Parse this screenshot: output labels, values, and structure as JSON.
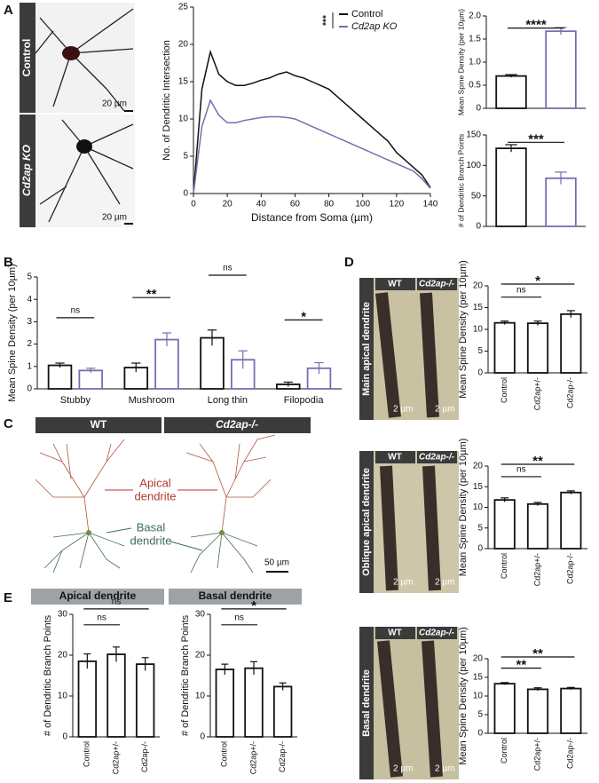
{
  "figure": {
    "panel_labels": [
      "A",
      "B",
      "C",
      "D",
      "E"
    ],
    "a_images": {
      "labels": [
        "Control",
        "Cd2ap KO"
      ],
      "scale": "20 µm"
    },
    "c_diagram": {
      "headers": [
        "WT",
        "Cd2ap-/-"
      ],
      "apical": [
        "Apical",
        "dendrite"
      ],
      "basal": [
        "Basal",
        "dendrite"
      ],
      "scale": "50 µm"
    },
    "d_images": {
      "headers": [
        "WT",
        "Cd2ap-/-"
      ],
      "rows": [
        "Main apical dendrite",
        "Oblique apical dendrite",
        "Basal dendrite"
      ],
      "scale": "2 µm"
    },
    "e_headers": [
      "Apical dendrite",
      "Basal dendrite"
    ]
  },
  "chart_data": [
    {
      "type": "line",
      "ylabel": "No. of Dendritic Intersection",
      "xlabel": "Distance from Soma (µm)",
      "x": [
        0,
        5,
        10,
        15,
        20,
        25,
        30,
        35,
        40,
        45,
        50,
        55,
        60,
        65,
        70,
        75,
        80,
        85,
        90,
        95,
        100,
        105,
        110,
        115,
        120,
        125,
        130,
        135,
        140
      ],
      "series": [
        {
          "name": "Control",
          "color": "#111111",
          "values": [
            0,
            14,
            19,
            16,
            15,
            14.5,
            14.5,
            14.8,
            15.2,
            15.5,
            16,
            16.3,
            15.8,
            15.5,
            15,
            14.5,
            14,
            13,
            12,
            11,
            10,
            9,
            8,
            7,
            5.5,
            4.5,
            3.5,
            2.5,
            0.8
          ]
        },
        {
          "name": "Cd2ap KO",
          "color": "#7b6bb0",
          "values": [
            0,
            9,
            12.5,
            10.5,
            9.5,
            9.5,
            9.8,
            10,
            10.2,
            10.3,
            10.3,
            10.2,
            10,
            9.5,
            9,
            8.5,
            8,
            7.5,
            7,
            6.5,
            6,
            5.5,
            5,
            4.5,
            4,
            3.5,
            3,
            2,
            0.7
          ]
        }
      ],
      "annotations": [
        "***"
      ],
      "xlim": [
        0,
        140
      ],
      "xticks": [
        0,
        20,
        40,
        60,
        80,
        100,
        120,
        140
      ],
      "ylim": [
        0,
        25
      ],
      "yticks": [
        0,
        5,
        10,
        15,
        20,
        25
      ]
    },
    {
      "type": "bar",
      "ylabel": "Mean Spine Density (per 10µm)",
      "categories": [
        null,
        null
      ],
      "values": [
        0.7,
        1.67
      ],
      "errors": [
        0.03,
        0.08
      ],
      "colors": [
        "#111111",
        "#7b6bb0"
      ],
      "annotations": [
        "****"
      ],
      "ylim": [
        0,
        2
      ],
      "yticks": [
        0,
        0.5,
        {
          "value": 1,
          "label": "1.0"
        },
        1.5,
        {
          "value": 2,
          "label": "2.0"
        }
      ]
    },
    {
      "type": "bar",
      "ylabel": "# of Dendritic Branch Points",
      "categories": [
        null,
        null
      ],
      "values": [
        128,
        79
      ],
      "errors": [
        6,
        10
      ],
      "colors": [
        "#111111",
        "#7b6bb0"
      ],
      "annotations": [
        "***"
      ],
      "ylim": [
        0,
        150
      ],
      "yticks": [
        0,
        50,
        100,
        150
      ]
    },
    {
      "type": "bar",
      "ylabel": "Mean Spine Density (per 10µm)",
      "categories": [
        "Stubby",
        "Mushroom",
        "Long thin",
        "Filopodia"
      ],
      "series": [
        {
          "color": "#111111",
          "values": [
            1.05,
            0.95,
            2.28,
            0.2
          ],
          "errors": [
            0.1,
            0.2,
            0.35,
            0.1
          ]
        },
        {
          "color": "#7b6bb0",
          "values": [
            0.82,
            2.2,
            1.3,
            0.92
          ],
          "errors": [
            0.1,
            0.3,
            0.4,
            0.25
          ]
        }
      ],
      "annotations": [
        "ns",
        "**",
        "ns",
        "*"
      ],
      "ylim": [
        0,
        5
      ],
      "yticks": [
        0,
        1,
        2,
        3,
        4,
        5
      ]
    },
    {
      "type": "bar",
      "ylabel": "Mean Spine Density (per 10µm)",
      "categories": [
        "Control",
        "Cd2ap+/-",
        "Cd2ap-/-"
      ],
      "values": [
        11.5,
        11.4,
        13.5
      ],
      "errors": [
        0.4,
        0.5,
        0.8
      ],
      "colors": [
        "#111111",
        "#111111",
        "#111111"
      ],
      "annotations": [
        "ns",
        "*"
      ],
      "ylim": [
        0,
        20
      ],
      "yticks": [
        0,
        5,
        10,
        15,
        20
      ]
    },
    {
      "type": "bar",
      "ylabel": "Mean Spine Density (per 10µm)",
      "categories": [
        "Control",
        "Cd2ap+/-",
        "Cd2ap-/-"
      ],
      "values": [
        11.8,
        10.8,
        13.6
      ],
      "errors": [
        0.5,
        0.4,
        0.4
      ],
      "colors": [
        "#111111",
        "#111111",
        "#111111"
      ],
      "annotations": [
        "ns",
        "**"
      ],
      "ylim": [
        0,
        20
      ],
      "yticks": [
        0,
        5,
        10,
        15,
        20
      ]
    },
    {
      "type": "bar",
      "ylabel": "Mean Spine Density (per 10µm)",
      "categories": [
        "Control",
        "Cd2ap+/-",
        "Cd2ap-/-"
      ],
      "values": [
        13.3,
        11.8,
        12.0
      ],
      "errors": [
        0.3,
        0.4,
        0.3
      ],
      "colors": [
        "#111111",
        "#111111",
        "#111111"
      ],
      "annotations": [
        "**",
        "**"
      ],
      "ylim": [
        0,
        20
      ],
      "yticks": [
        0,
        5,
        10,
        15,
        20
      ]
    },
    {
      "type": "bar",
      "ylabel": "# of Dendritic Branch Points",
      "categories": [
        "Control",
        "Cd2ap+/-",
        "Cd2ap-/-"
      ],
      "values": [
        18.5,
        20.2,
        17.8
      ],
      "errors": [
        1.8,
        1.8,
        1.6
      ],
      "colors": [
        "#111111",
        "#111111",
        "#111111"
      ],
      "annotations": [
        "ns",
        "ns"
      ],
      "ylim": [
        0,
        30
      ],
      "yticks": [
        0,
        10,
        20,
        30
      ]
    },
    {
      "type": "bar",
      "ylabel": "# of Dendritic Branch Points",
      "categories": [
        "Control",
        "Cd2ap+/-",
        "Cd2ap-/-"
      ],
      "values": [
        16.5,
        16.8,
        12.3
      ],
      "errors": [
        1.3,
        1.6,
        0.9
      ],
      "colors": [
        "#111111",
        "#111111",
        "#111111"
      ],
      "annotations": [
        "ns",
        "*"
      ],
      "ylim": [
        0,
        30
      ],
      "yticks": [
        0,
        10,
        20,
        30
      ]
    }
  ]
}
